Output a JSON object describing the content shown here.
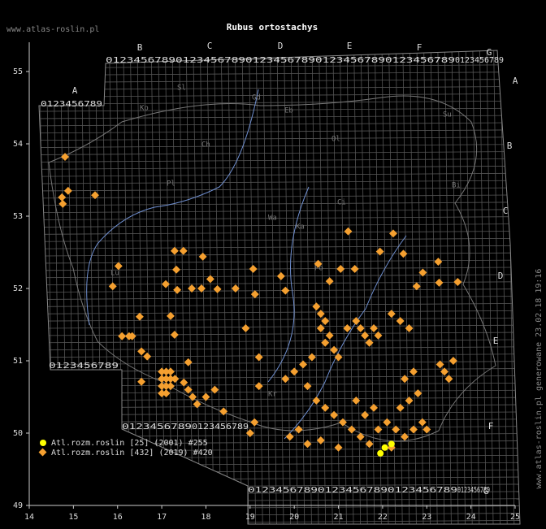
{
  "map": {
    "title": "Rubus ortostachys",
    "watermark": "www.atlas-roslin.pl",
    "footer": "www.atlas-roslin.pl generowane 23.02.18 19:16",
    "xlim": [
      14,
      25
    ],
    "ylim": [
      49,
      55
    ],
    "xticks": [
      14,
      15,
      16,
      17,
      18,
      19,
      20,
      21,
      22,
      23,
      24,
      25
    ],
    "yticks": [
      49,
      50,
      51,
      52,
      53,
      54,
      55
    ],
    "grid_columns": [
      "A",
      "B",
      "C",
      "D",
      "E",
      "F",
      "G"
    ],
    "grid_rows": [
      "A",
      "B",
      "C",
      "D",
      "E",
      "F",
      "G"
    ],
    "digits": "0123456789",
    "regions": [
      "Sl",
      "Ko",
      "Gd",
      "Eb",
      "Ol",
      "Su",
      "Ch",
      "Pl",
      "Bi",
      "Ci",
      "Wa",
      "Ka",
      "Po",
      "Lu",
      "Kr"
    ],
    "series": [
      {
        "name": "Atl.rozm.roslin [25] (2001) #255",
        "color": "#ffff00",
        "shape": "circle",
        "points": [
          [
            21.95,
            49.72
          ],
          [
            22.05,
            49.8
          ],
          [
            22.2,
            49.85
          ]
        ]
      },
      {
        "name": "Atl.rozm.roslin [432] (2019) #420",
        "color": "#f5a030",
        "shape": "diamond",
        "points": [
          [
            14.81,
            53.82
          ],
          [
            14.88,
            53.35
          ],
          [
            14.74,
            53.26
          ],
          [
            14.76,
            53.17
          ],
          [
            15.49,
            53.29
          ],
          [
            16.02,
            52.31
          ],
          [
            15.89,
            52.03
          ],
          [
            17.29,
            52.52
          ],
          [
            17.49,
            52.52
          ],
          [
            17.93,
            52.44
          ],
          [
            17.33,
            52.26
          ],
          [
            17.09,
            52.06
          ],
          [
            17.35,
            51.98
          ],
          [
            17.68,
            52.0
          ],
          [
            17.9,
            52.0
          ],
          [
            18.1,
            52.13
          ],
          [
            18.26,
            51.99
          ],
          [
            18.67,
            52.0
          ],
          [
            19.07,
            52.27
          ],
          [
            19.11,
            51.92
          ],
          [
            19.7,
            52.17
          ],
          [
            19.8,
            51.97
          ],
          [
            20.54,
            52.34
          ],
          [
            21.05,
            52.27
          ],
          [
            21.22,
            52.79
          ],
          [
            21.37,
            52.27
          ],
          [
            20.8,
            52.1
          ],
          [
            21.94,
            52.51
          ],
          [
            22.24,
            52.76
          ],
          [
            22.47,
            52.48
          ],
          [
            22.77,
            52.03
          ],
          [
            22.91,
            52.22
          ],
          [
            23.26,
            52.37
          ],
          [
            23.7,
            52.09
          ],
          [
            23.28,
            52.08
          ],
          [
            16.5,
            51.61
          ],
          [
            17.2,
            51.62
          ],
          [
            16.26,
            51.34
          ],
          [
            16.1,
            51.34
          ],
          [
            16.33,
            51.34
          ],
          [
            16.54,
            51.13
          ],
          [
            16.67,
            51.06
          ],
          [
            16.54,
            50.71
          ],
          [
            17.29,
            51.36
          ],
          [
            17.6,
            50.98
          ],
          [
            17.0,
            50.85
          ],
          [
            17.1,
            50.85
          ],
          [
            17.2,
            50.85
          ],
          [
            17.0,
            50.75
          ],
          [
            17.1,
            50.75
          ],
          [
            17.2,
            50.75
          ],
          [
            17.3,
            50.75
          ],
          [
            17.0,
            50.65
          ],
          [
            17.1,
            50.65
          ],
          [
            17.2,
            50.65
          ],
          [
            17.0,
            50.55
          ],
          [
            17.1,
            50.55
          ],
          [
            17.5,
            50.7
          ],
          [
            17.6,
            50.6
          ],
          [
            17.7,
            50.5
          ],
          [
            17.8,
            50.4
          ],
          [
            18.0,
            50.5
          ],
          [
            18.2,
            50.6
          ],
          [
            18.4,
            50.3
          ],
          [
            20.5,
            51.75
          ],
          [
            20.6,
            51.65
          ],
          [
            20.7,
            51.55
          ],
          [
            20.6,
            51.45
          ],
          [
            20.8,
            51.35
          ],
          [
            20.7,
            51.25
          ],
          [
            20.9,
            51.15
          ],
          [
            21.0,
            51.05
          ],
          [
            21.2,
            51.45
          ],
          [
            21.4,
            51.55
          ],
          [
            21.5,
            51.45
          ],
          [
            21.6,
            51.35
          ],
          [
            21.8,
            51.45
          ],
          [
            21.7,
            51.25
          ],
          [
            21.9,
            51.35
          ],
          [
            20.4,
            51.05
          ],
          [
            20.2,
            50.95
          ],
          [
            20.0,
            50.85
          ],
          [
            19.8,
            50.75
          ],
          [
            20.3,
            50.65
          ],
          [
            20.5,
            50.45
          ],
          [
            20.7,
            50.35
          ],
          [
            20.9,
            50.25
          ],
          [
            21.1,
            50.15
          ],
          [
            21.3,
            50.05
          ],
          [
            21.5,
            49.95
          ],
          [
            21.7,
            49.85
          ],
          [
            21.9,
            50.05
          ],
          [
            22.1,
            50.15
          ],
          [
            22.3,
            50.05
          ],
          [
            22.5,
            49.95
          ],
          [
            22.7,
            50.05
          ],
          [
            22.9,
            50.15
          ],
          [
            22.4,
            50.35
          ],
          [
            22.6,
            50.45
          ],
          [
            22.8,
            50.55
          ],
          [
            22.5,
            50.75
          ],
          [
            22.7,
            50.85
          ],
          [
            21.8,
            50.35
          ],
          [
            21.6,
            50.25
          ],
          [
            21.4,
            50.45
          ],
          [
            20.1,
            50.05
          ],
          [
            19.9,
            49.95
          ],
          [
            20.3,
            49.85
          ],
          [
            20.6,
            49.9
          ],
          [
            21.0,
            49.8
          ],
          [
            22.2,
            49.8
          ],
          [
            23.0,
            50.05
          ],
          [
            23.3,
            50.95
          ],
          [
            23.4,
            50.85
          ],
          [
            23.5,
            50.75
          ],
          [
            23.6,
            51.0
          ],
          [
            22.4,
            51.55
          ],
          [
            22.6,
            51.45
          ],
          [
            22.2,
            51.65
          ],
          [
            19.1,
            50.15
          ],
          [
            19.0,
            50.0
          ],
          [
            19.2,
            50.65
          ],
          [
            18.9,
            51.45
          ],
          [
            19.2,
            51.05
          ]
        ]
      }
    ]
  }
}
